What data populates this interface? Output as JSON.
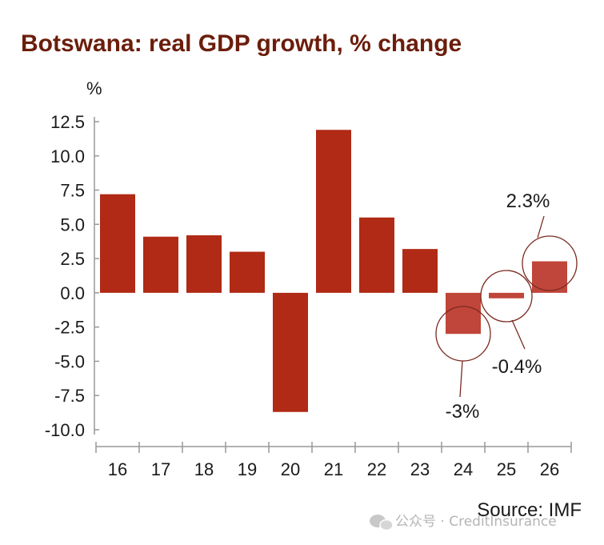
{
  "chart_data": {
    "type": "bar",
    "title": "Botswana: real GDP growth, % change",
    "ylabel": "%",
    "xlabel": "",
    "categories": [
      "16",
      "17",
      "18",
      "19",
      "20",
      "21",
      "22",
      "23",
      "24",
      "25",
      "26"
    ],
    "values": [
      7.2,
      4.1,
      4.2,
      3.0,
      -8.7,
      11.9,
      5.5,
      3.2,
      -3.0,
      -0.4,
      2.3
    ],
    "ylim": [
      -10.0,
      12.5
    ],
    "yticks": [
      "12.5",
      "10.0",
      "7.5",
      "5.0",
      "2.5",
      "0.0",
      "-2.5",
      "-5.0",
      "-7.5",
      "-10.0"
    ],
    "grid": false,
    "legend": "none",
    "highlighted": [
      "24",
      "25",
      "26"
    ],
    "annotations": [
      {
        "category": "24",
        "label": "-3%"
      },
      {
        "category": "25",
        "label": "-0.4%"
      },
      {
        "category": "26",
        "label": "2.3%"
      }
    ],
    "source": "Source: IMF",
    "colors": {
      "bar": "#b02a15",
      "bar_highlight": "#c0453a",
      "title": "#6b1d0b",
      "circle": "#7a2a20",
      "axis": "#999999"
    }
  },
  "watermark": "公众号 · CreditInsurance"
}
